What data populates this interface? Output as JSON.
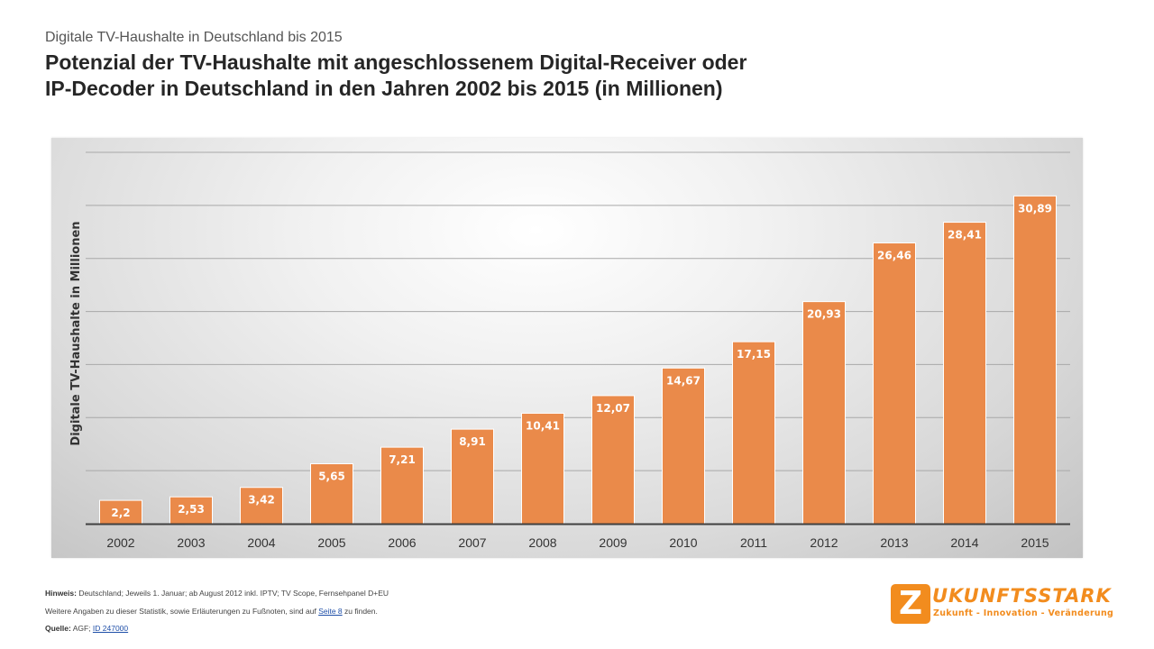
{
  "header": {
    "kicker": "Digitale TV-Haushalte  in Deutschland  bis 2015",
    "title_line1": "Potenzial der TV-Haushalte mit angeschlossenem Digital-Receiver oder",
    "title_line2": "IP-Decoder in Deutschland in den Jahren 2002 bis 2015 (in Millionen)"
  },
  "chart_data": {
    "type": "bar",
    "categories": [
      "2002",
      "2003",
      "2004",
      "2005",
      "2006",
      "2007",
      "2008",
      "2009",
      "2010",
      "2011",
      "2012",
      "2013",
      "2014",
      "2015"
    ],
    "values": [
      2.2,
      2.53,
      3.42,
      5.65,
      7.21,
      8.91,
      10.41,
      12.07,
      14.67,
      17.15,
      20.93,
      26.46,
      28.41,
      30.89
    ],
    "value_labels": [
      "2,2",
      "2,53",
      "3,42",
      "5,65",
      "7,21",
      "8,91",
      "10,41",
      "12,07",
      "14,67",
      "17,15",
      "20,93",
      "26,46",
      "28,41",
      "30,89"
    ],
    "ylabel": "Digitale TV-Haushalte in Millionen",
    "xlabel": "",
    "ylim": [
      0,
      35
    ],
    "grid": true,
    "y_tick_labels_shown": false,
    "bar_color": "#ea8a4a",
    "bar_edge_color": "#ffffff"
  },
  "footer": {
    "note_label": "Hinweis:",
    "note_text": " Deutschland; Jeweils 1. Januar; ab August 2012 inkl. IPTV; TV Scope, Fernsehpanel D+EU",
    "more_prefix": "Weitere Angaben zu dieser Statistik, sowie Erläuterungen  zu Fußnoten, sind auf ",
    "more_link": "Seite 8",
    "more_suffix": " zu  finden.",
    "source_label": "Quelle:",
    "source_text": " AGF; ",
    "source_link": "ID 247000"
  },
  "logo": {
    "mark": "Z",
    "word": "UKUNFTSSTARK",
    "tagline": "Zukunft  -  Innovation  -  Veränderung",
    "color": "#f28c1e"
  }
}
